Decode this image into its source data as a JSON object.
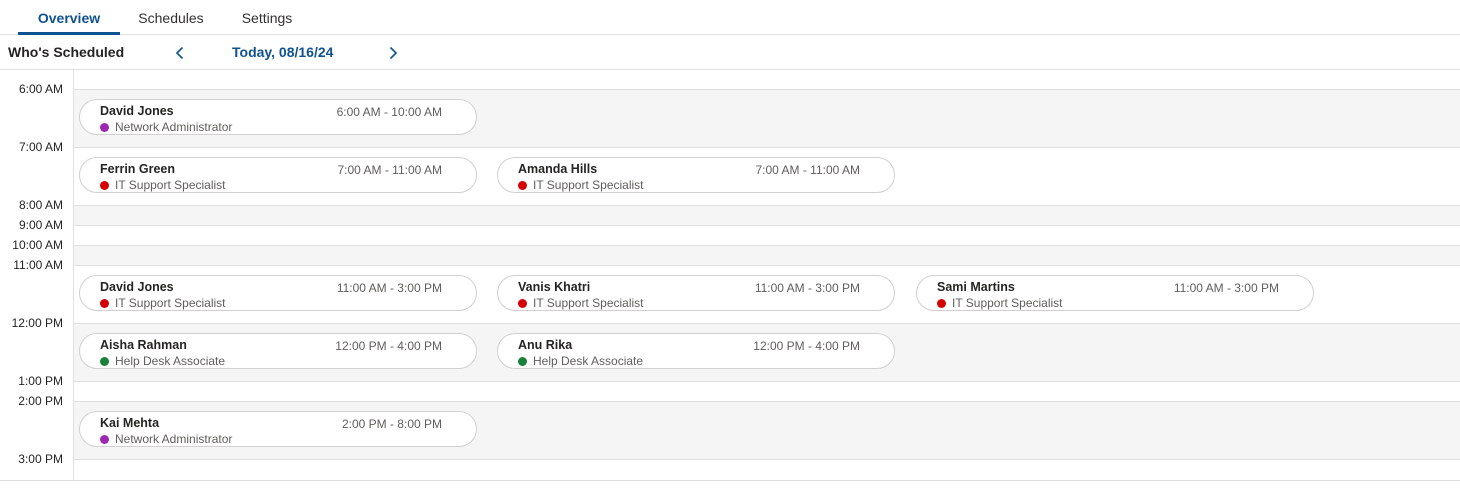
{
  "tabs": [
    {
      "label": "Overview",
      "active": true
    },
    {
      "label": "Schedules",
      "active": false
    },
    {
      "label": "Settings",
      "active": false
    }
  ],
  "header": {
    "title": "Who's Scheduled",
    "date": "Today, 08/16/24",
    "prev_icon": "chevron-left-icon",
    "next_icon": "chevron-right-icon"
  },
  "colors": {
    "accent": "#0f5291",
    "network_admin": "#9c27b0",
    "it_support": "#d50000",
    "help_desk": "#188038"
  },
  "times": [
    "6:00 AM",
    "7:00 AM",
    "8:00 AM",
    "9:00 AM",
    "10:00 AM",
    "11:00 AM",
    "12:00 PM",
    "1:00 PM",
    "2:00 PM",
    "3:00 PM"
  ],
  "shifts": [
    {
      "name": "David Jones",
      "time": "6:00 AM - 10:00 AM",
      "role": "Network Administrator",
      "role_color": "#9c27b0"
    },
    {
      "name": "Ferrin Green",
      "time": "7:00 AM - 11:00 AM",
      "role": "IT Support Specialist",
      "role_color": "#d50000"
    },
    {
      "name": "Amanda Hills",
      "time": "7:00 AM - 11:00 AM",
      "role": "IT Support Specialist",
      "role_color": "#d50000"
    },
    {
      "name": "David Jones",
      "time": "11:00 AM - 3:00 PM",
      "role": "IT Support Specialist",
      "role_color": "#d50000"
    },
    {
      "name": "Vanis Khatri",
      "time": "11:00 AM - 3:00 PM",
      "role": "IT Support Specialist",
      "role_color": "#d50000"
    },
    {
      "name": "Sami Martins",
      "time": "11:00 AM - 3:00 PM",
      "role": "IT Support Specialist",
      "role_color": "#d50000"
    },
    {
      "name": "Aisha Rahman",
      "time": "12:00 PM - 4:00 PM",
      "role": "Help Desk Associate",
      "role_color": "#188038"
    },
    {
      "name": "Anu Rika",
      "time": "12:00 PM - 4:00 PM",
      "role": "Help Desk Associate",
      "role_color": "#188038"
    },
    {
      "name": "Kai Mehta",
      "time": "2:00 PM - 8:00 PM",
      "role": "Network Administrator",
      "role_color": "#9c27b0"
    }
  ]
}
